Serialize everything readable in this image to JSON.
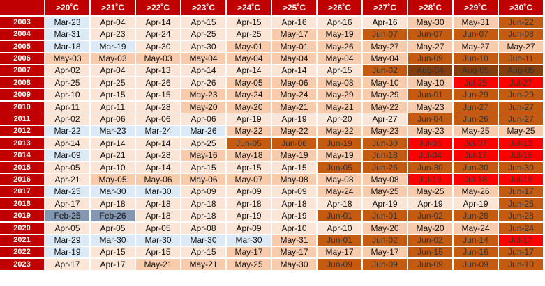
{
  "palette": {
    "header": "#c00000",
    "blue1": "#dce9f6",
    "blue2": "#b5c9e0",
    "blue3": "#8497b0",
    "pale": "#fbe5d6",
    "light": "#f8cbad",
    "medium": "#f4b183",
    "dark": "#c55a11",
    "darker": "#843c0c",
    "red": "#ff0000"
  },
  "table": {
    "headers": [
      ">20˚C",
      ">21˚C",
      ">22˚C",
      ">23˚C",
      ">24˚C",
      ">25˚C",
      ">26˚C",
      ">27˚C",
      ">28˚C",
      ">29˚C",
      ">30˚C"
    ],
    "rows": [
      {
        "year": "2003",
        "cells": [
          [
            "Mar-23",
            "blue1"
          ],
          [
            "Apr-04",
            "pale"
          ],
          [
            "Apr-14",
            "pale"
          ],
          [
            "Apr-15",
            "pale"
          ],
          [
            "Apr-15",
            "pale"
          ],
          [
            "Apr-16",
            "pale"
          ],
          [
            "Apr-16",
            "pale"
          ],
          [
            "Apr-16",
            "pale"
          ],
          [
            "May-30",
            "light"
          ],
          [
            "May-31",
            "light"
          ],
          [
            "Jun-22",
            "dark"
          ]
        ]
      },
      {
        "year": "2004",
        "cells": [
          [
            "Mar-31",
            "blue1"
          ],
          [
            "Apr-23",
            "pale"
          ],
          [
            "Apr-24",
            "pale"
          ],
          [
            "Apr-25",
            "pale"
          ],
          [
            "Apr-25",
            "pale"
          ],
          [
            "May-17",
            "light"
          ],
          [
            "May-19",
            "light"
          ],
          [
            "Jun-07",
            "dark"
          ],
          [
            "Jun-07",
            "dark"
          ],
          [
            "Jun-07",
            "dark"
          ],
          [
            "Jun-08",
            "dark"
          ]
        ]
      },
      {
        "year": "2005",
        "cells": [
          [
            "Mar-18",
            "blue1"
          ],
          [
            "Mar-19",
            "blue1"
          ],
          [
            "Apr-30",
            "pale"
          ],
          [
            "Apr-30",
            "pale"
          ],
          [
            "May-01",
            "light"
          ],
          [
            "May-01",
            "light"
          ],
          [
            "May-26",
            "light"
          ],
          [
            "May-27",
            "light"
          ],
          [
            "May-27",
            "light"
          ],
          [
            "May-27",
            "light"
          ],
          [
            "May-27",
            "light"
          ]
        ]
      },
      {
        "year": "2006",
        "cells": [
          [
            "May-03",
            "light"
          ],
          [
            "May-03",
            "light"
          ],
          [
            "May-03",
            "light"
          ],
          [
            "May-04",
            "light"
          ],
          [
            "May-04",
            "light"
          ],
          [
            "May-04",
            "light"
          ],
          [
            "May-04",
            "light"
          ],
          [
            "May-04",
            "light"
          ],
          [
            "Jun-09",
            "dark"
          ],
          [
            "Jun-10",
            "dark"
          ],
          [
            "Jun-11",
            "dark"
          ]
        ]
      },
      {
        "year": "2007",
        "cells": [
          [
            "Apr-02",
            "pale"
          ],
          [
            "Apr-04",
            "pale"
          ],
          [
            "Apr-13",
            "pale"
          ],
          [
            "Apr-14",
            "pale"
          ],
          [
            "Apr-14",
            "pale"
          ],
          [
            "Apr-14",
            "pale"
          ],
          [
            "Apr-15",
            "pale"
          ],
          [
            "Jun-02",
            "dark"
          ],
          [
            "Aug-04",
            "darker"
          ],
          [
            "Aug-05",
            "darker"
          ],
          [
            "Aug-05",
            "darker"
          ]
        ]
      },
      {
        "year": "2008",
        "cells": [
          [
            "Apr-25",
            "pale"
          ],
          [
            "Apr-25",
            "pale"
          ],
          [
            "Apr-26",
            "pale"
          ],
          [
            "Apr-26",
            "pale"
          ],
          [
            "May-05",
            "light"
          ],
          [
            "May-06",
            "light"
          ],
          [
            "May-08",
            "light"
          ],
          [
            "May-10",
            "light"
          ],
          [
            "May-10",
            "light"
          ],
          [
            "Jul-25",
            "red"
          ],
          [
            "Jul-27",
            "red"
          ]
        ]
      },
      {
        "year": "2009",
        "cells": [
          [
            "Apr-10",
            "pale"
          ],
          [
            "Apr-15",
            "pale"
          ],
          [
            "Apr-15",
            "pale"
          ],
          [
            "May-23",
            "light"
          ],
          [
            "May-24",
            "light"
          ],
          [
            "May-24",
            "light"
          ],
          [
            "May-29",
            "light"
          ],
          [
            "May-29",
            "light"
          ],
          [
            "Jun-01",
            "dark"
          ],
          [
            "Jun-29",
            "dark"
          ],
          [
            "Jun-29",
            "dark"
          ]
        ]
      },
      {
        "year": "2010",
        "cells": [
          [
            "Apr-11",
            "pale"
          ],
          [
            "Apr-11",
            "pale"
          ],
          [
            "Apr-28",
            "pale"
          ],
          [
            "May-20",
            "light"
          ],
          [
            "May-20",
            "light"
          ],
          [
            "May-21",
            "light"
          ],
          [
            "May-21",
            "light"
          ],
          [
            "May-22",
            "light"
          ],
          [
            "May-23",
            "light"
          ],
          [
            "Jun-27",
            "dark"
          ],
          [
            "Jun-27",
            "dark"
          ]
        ]
      },
      {
        "year": "2011",
        "cells": [
          [
            "Apr-02",
            "pale"
          ],
          [
            "Apr-06",
            "pale"
          ],
          [
            "Apr-06",
            "pale"
          ],
          [
            "Apr-06",
            "pale"
          ],
          [
            "Apr-19",
            "pale"
          ],
          [
            "Apr-19",
            "pale"
          ],
          [
            "Apr-20",
            "pale"
          ],
          [
            "Apr-27",
            "pale"
          ],
          [
            "Jun-04",
            "dark"
          ],
          [
            "Jun-26",
            "dark"
          ],
          [
            "Jun-27",
            "dark"
          ]
        ]
      },
      {
        "year": "2012",
        "cells": [
          [
            "Mar-22",
            "blue1"
          ],
          [
            "Mar-23",
            "blue1"
          ],
          [
            "Mar-24",
            "blue1"
          ],
          [
            "Mar-26",
            "blue1"
          ],
          [
            "May-22",
            "light"
          ],
          [
            "May-22",
            "light"
          ],
          [
            "May-22",
            "light"
          ],
          [
            "May-23",
            "light"
          ],
          [
            "May-23",
            "light"
          ],
          [
            "May-25",
            "light"
          ],
          [
            "May-25",
            "light"
          ]
        ]
      },
      {
        "year": "2013",
        "cells": [
          [
            "Apr-14",
            "pale"
          ],
          [
            "Apr-14",
            "pale"
          ],
          [
            "Apr-14",
            "pale"
          ],
          [
            "Apr-25",
            "pale"
          ],
          [
            "Jun-05",
            "dark"
          ],
          [
            "Jun-06",
            "dark"
          ],
          [
            "Jun-19",
            "dark"
          ],
          [
            "Jun-30",
            "dark"
          ],
          [
            "Jul-06",
            "red"
          ],
          [
            "Jul-07",
            "red"
          ],
          [
            "Jul-13",
            "red"
          ]
        ]
      },
      {
        "year": "2014",
        "cells": [
          [
            "Mar-09",
            "blue1"
          ],
          [
            "Apr-21",
            "pale"
          ],
          [
            "Apr-28",
            "pale"
          ],
          [
            "May-16",
            "light"
          ],
          [
            "May-18",
            "light"
          ],
          [
            "May-19",
            "light"
          ],
          [
            "May-19",
            "light"
          ],
          [
            "Jun-18",
            "dark"
          ],
          [
            "Jul-04",
            "red"
          ],
          [
            "Jul-17",
            "red"
          ],
          [
            "Jul-18",
            "red"
          ]
        ]
      },
      {
        "year": "2015",
        "cells": [
          [
            "Apr-05",
            "pale"
          ],
          [
            "Apr-10",
            "pale"
          ],
          [
            "Apr-14",
            "pale"
          ],
          [
            "Apr-15",
            "pale"
          ],
          [
            "Apr-15",
            "pale"
          ],
          [
            "Apr-15",
            "pale"
          ],
          [
            "Jun-05",
            "dark"
          ],
          [
            "Jun-26",
            "dark"
          ],
          [
            "Jun-30",
            "dark"
          ],
          [
            "Jun-30",
            "dark"
          ],
          [
            "Jun-30",
            "dark"
          ]
        ]
      },
      {
        "year": "2016",
        "cells": [
          [
            "Apr-21",
            "pale"
          ],
          [
            "May-05",
            "light"
          ],
          [
            "May-06",
            "light"
          ],
          [
            "May-06",
            "light"
          ],
          [
            "May-07",
            "light"
          ],
          [
            "May-08",
            "light"
          ],
          [
            "May-08",
            "light"
          ],
          [
            "May-08",
            "light"
          ],
          [
            "Jul-18",
            "red"
          ],
          [
            "Jul-18",
            "red"
          ],
          [
            "Jul-18",
            "red"
          ]
        ]
      },
      {
        "year": "2017",
        "cells": [
          [
            "Mar-25",
            "blue1"
          ],
          [
            "Mar-30",
            "blue1"
          ],
          [
            "Mar-30",
            "blue1"
          ],
          [
            "Apr-09",
            "pale"
          ],
          [
            "Apr-09",
            "pale"
          ],
          [
            "Apr-09",
            "pale"
          ],
          [
            "May-24",
            "light"
          ],
          [
            "May-25",
            "light"
          ],
          [
            "May-25",
            "light"
          ],
          [
            "May-26",
            "light"
          ],
          [
            "Jun-17",
            "dark"
          ]
        ]
      },
      {
        "year": "2018",
        "cells": [
          [
            "Apr-17",
            "pale"
          ],
          [
            "Apr-18",
            "pale"
          ],
          [
            "Apr-18",
            "pale"
          ],
          [
            "Apr-18",
            "pale"
          ],
          [
            "Apr-18",
            "pale"
          ],
          [
            "Apr-18",
            "pale"
          ],
          [
            "Apr-18",
            "pale"
          ],
          [
            "Apr-19",
            "pale"
          ],
          [
            "Apr-19",
            "pale"
          ],
          [
            "Apr-19",
            "pale"
          ],
          [
            "Jun-25",
            "dark"
          ]
        ]
      },
      {
        "year": "2019",
        "cells": [
          [
            "Feb-25",
            "blue3"
          ],
          [
            "Feb-26",
            "blue3"
          ],
          [
            "Apr-18",
            "pale"
          ],
          [
            "Apr-18",
            "pale"
          ],
          [
            "Apr-19",
            "pale"
          ],
          [
            "Apr-19",
            "pale"
          ],
          [
            "Jun-01",
            "dark"
          ],
          [
            "Jun-01",
            "dark"
          ],
          [
            "Jun-02",
            "dark"
          ],
          [
            "Jun-28",
            "dark"
          ],
          [
            "Jun-28",
            "dark"
          ]
        ]
      },
      {
        "year": "2020",
        "cells": [
          [
            "Apr-05",
            "pale"
          ],
          [
            "Apr-05",
            "pale"
          ],
          [
            "Apr-05",
            "pale"
          ],
          [
            "Apr-08",
            "pale"
          ],
          [
            "Apr-09",
            "pale"
          ],
          [
            "Apr-10",
            "pale"
          ],
          [
            "Apr-10",
            "pale"
          ],
          [
            "May-20",
            "light"
          ],
          [
            "May-20",
            "light"
          ],
          [
            "May-24",
            "light"
          ],
          [
            "Jun-24",
            "dark"
          ]
        ]
      },
      {
        "year": "2021",
        "cells": [
          [
            "Mar-29",
            "blue1"
          ],
          [
            "Mar-30",
            "blue1"
          ],
          [
            "Mar-30",
            "blue1"
          ],
          [
            "Mar-30",
            "blue1"
          ],
          [
            "Mar-30",
            "blue1"
          ],
          [
            "May-31",
            "light"
          ],
          [
            "Jun-01",
            "dark"
          ],
          [
            "Jun-02",
            "dark"
          ],
          [
            "Jun-02",
            "dark"
          ],
          [
            "Jun-14",
            "dark"
          ],
          [
            "Jul-17",
            "red"
          ]
        ]
      },
      {
        "year": "2022",
        "cells": [
          [
            "Mar-19",
            "blue1"
          ],
          [
            "Apr-15",
            "pale"
          ],
          [
            "Apr-15",
            "pale"
          ],
          [
            "Apr-15",
            "pale"
          ],
          [
            "May-17",
            "light"
          ],
          [
            "May-17",
            "light"
          ],
          [
            "May-17",
            "light"
          ],
          [
            "May-17",
            "light"
          ],
          [
            "Jun-15",
            "dark"
          ],
          [
            "Jun-16",
            "dark"
          ],
          [
            "Jun-17",
            "dark"
          ]
        ]
      },
      {
        "year": "2023",
        "cells": [
          [
            "Apr-17",
            "pale"
          ],
          [
            "Apr-17",
            "pale"
          ],
          [
            "May-21",
            "light"
          ],
          [
            "May-21",
            "light"
          ],
          [
            "May-25",
            "light"
          ],
          [
            "May-30",
            "light"
          ],
          [
            "Jun-09",
            "dark"
          ],
          [
            "Jun-09",
            "dark"
          ],
          [
            "Jun-09",
            "dark"
          ],
          [
            "Jun-09",
            "dark"
          ],
          [
            "Jun-10",
            "dark"
          ]
        ]
      }
    ]
  }
}
